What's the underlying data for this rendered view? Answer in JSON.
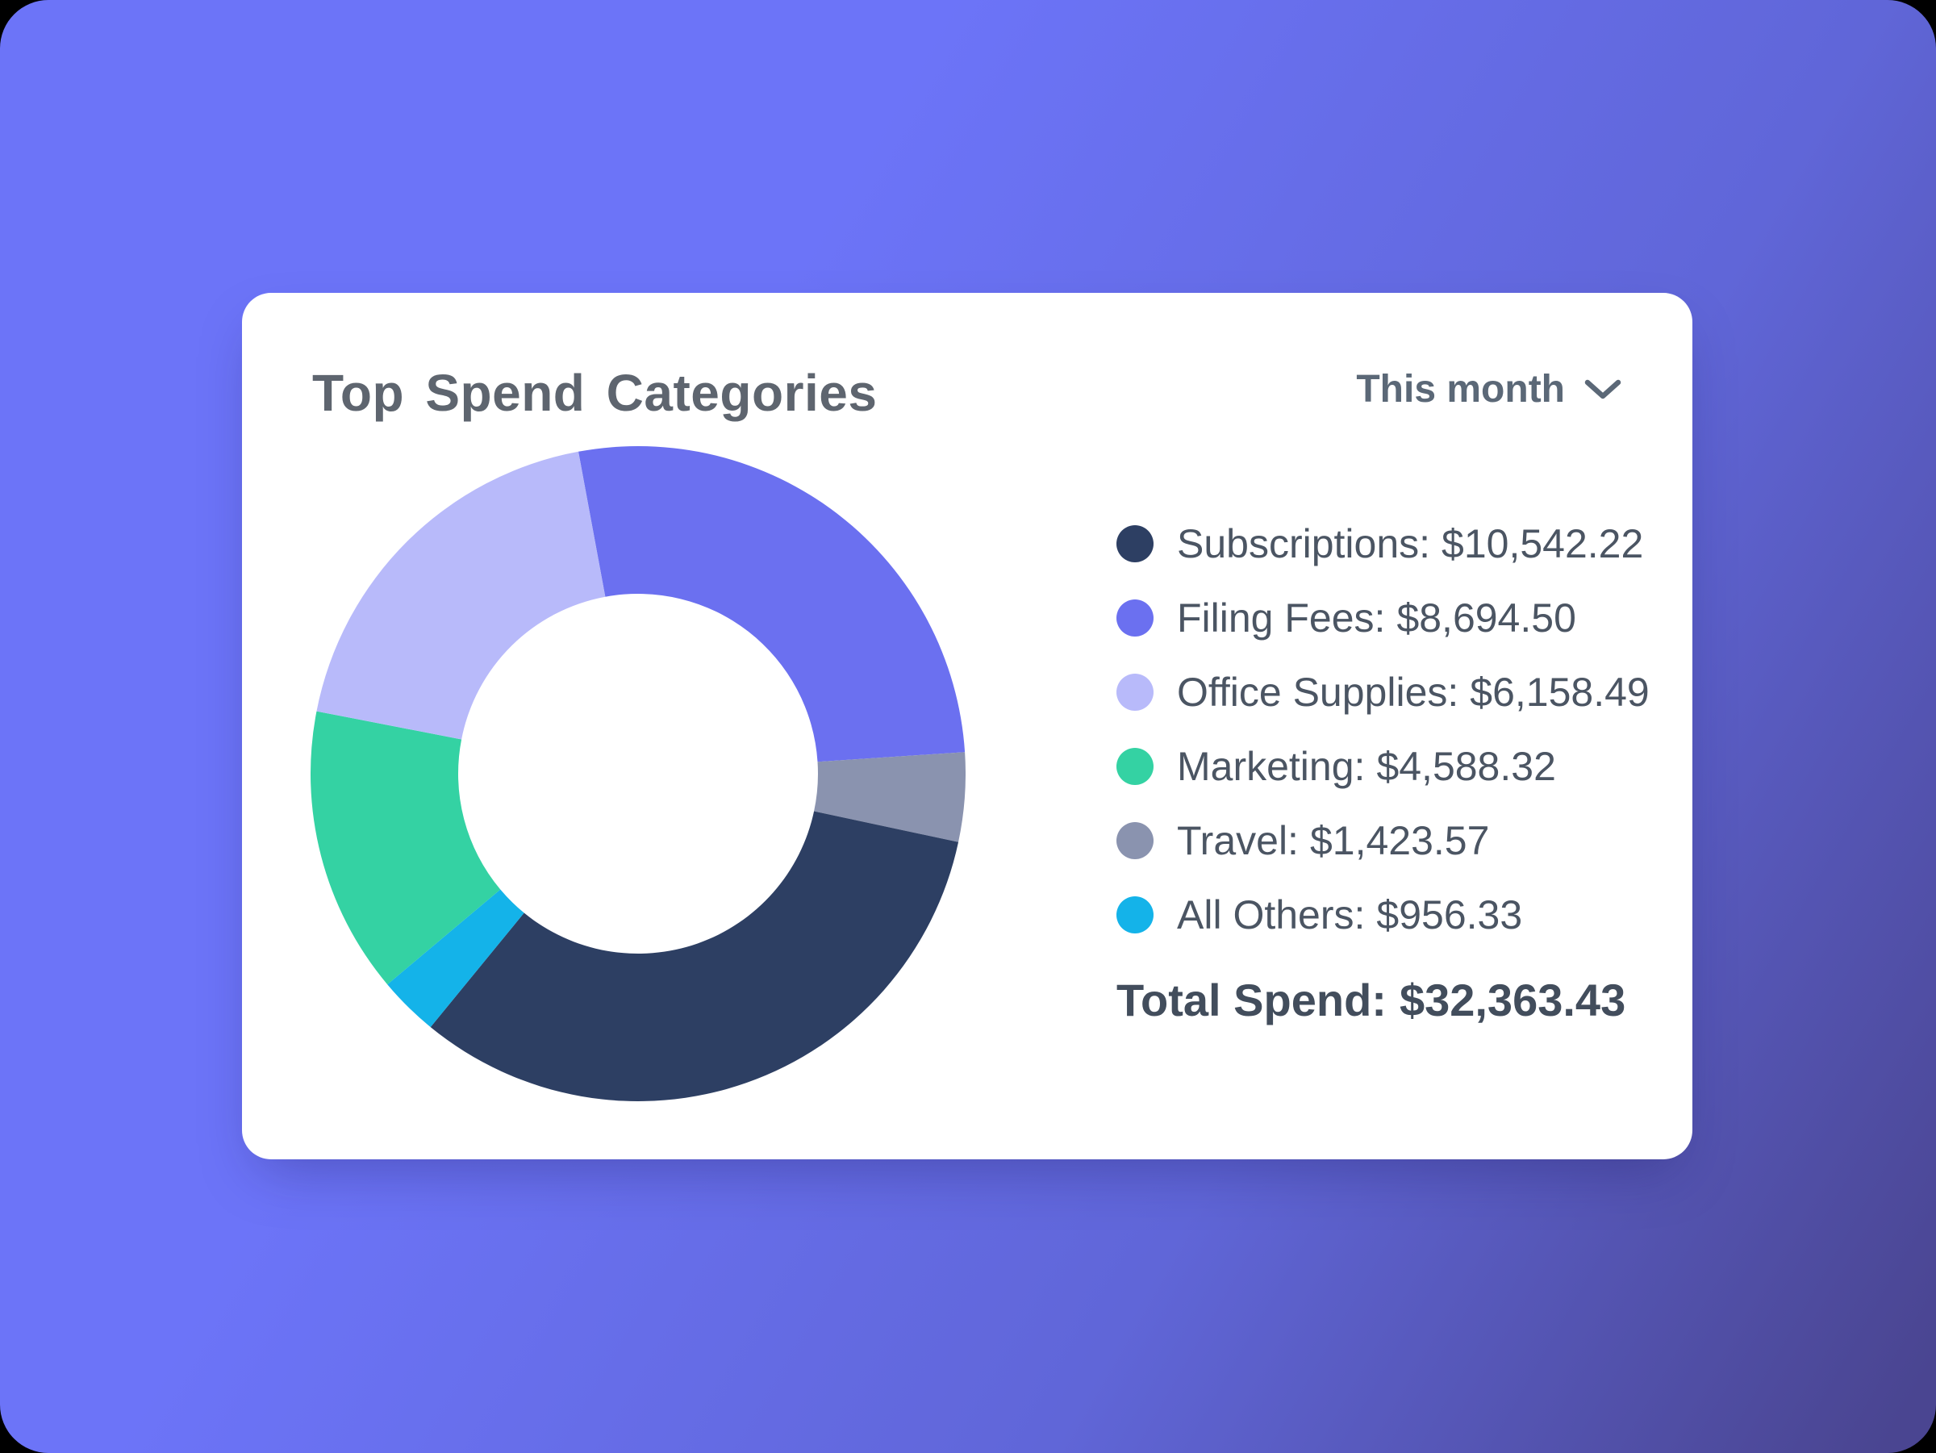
{
  "card": {
    "title": "Top Spend Categories",
    "period_selector": {
      "label": "This month",
      "icon": "chevron-down-icon"
    },
    "total": {
      "label": "Total Spend:",
      "value": "$32,363.43"
    }
  },
  "chart_data": {
    "type": "pie",
    "subtype": "donut",
    "title": "Top Spend Categories",
    "period": "This month",
    "legend_position": "right",
    "inner_radius_ratio": 0.55,
    "start_angle_deg": -10.5,
    "draw_order": [
      "Filing Fees",
      "Travel",
      "Subscriptions",
      "All Others",
      "Marketing",
      "Office Supplies"
    ],
    "segments": [
      {
        "label": "Subscriptions",
        "value": 10542.22,
        "display": "$10,542.22",
        "color": "#2d3f63"
      },
      {
        "label": "Filing Fees",
        "value": 8694.5,
        "display": "$8,694.50",
        "color": "#6b70f0"
      },
      {
        "label": "Office Supplies",
        "value": 6158.49,
        "display": "$6,158.49",
        "color": "#b8bafa"
      },
      {
        "label": "Marketing",
        "value": 4588.32,
        "display": "$4,588.32",
        "color": "#34d2a3"
      },
      {
        "label": "Travel",
        "value": 1423.57,
        "display": "$1,423.57",
        "color": "#8a93af"
      },
      {
        "label": "All Others",
        "value": 956.33,
        "display": "$956.33",
        "color": "#14b3e9"
      }
    ],
    "total_label": "Total Spend",
    "total_value": 32363.43,
    "total_display": "$32,363.43"
  },
  "colors": {
    "background_gradient_from": "#6c74f8",
    "background_gradient_mid": "#6066d8",
    "background_gradient_to": "#4a4591",
    "card_background": "#ffffff",
    "title_text": "#5e656f",
    "legend_text": "#4b5563",
    "total_text": "#424d5c",
    "period_text": "#5b6877"
  }
}
